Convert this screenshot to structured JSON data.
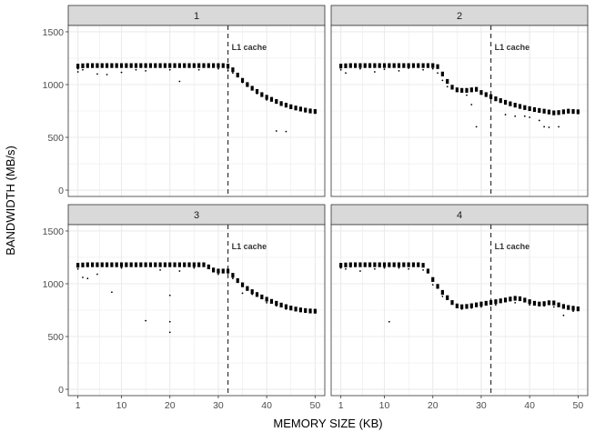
{
  "chart_data": {
    "type": "scatter",
    "xlabel": "MEMORY SIZE (KB)",
    "ylabel": "BANDWIDTH (MB/s)",
    "xlim": [
      -1,
      52
    ],
    "ylim": [
      -60,
      1560
    ],
    "x_ticks": [
      1,
      10,
      20,
      30,
      40,
      50
    ],
    "y_ticks": [
      0,
      500,
      1000,
      1500
    ],
    "grid": true,
    "colors": {
      "point": "#000000",
      "panel_bg": "#ffffff",
      "grid": "#ebebeb",
      "strip_bg": "#d9d9d9",
      "border": "#333333",
      "vline": "#333333"
    },
    "annotation": {
      "label": "L1 cache",
      "x": 32,
      "style": "dashed"
    },
    "panels": [
      {
        "strip": "1",
        "main_series": [
          [
            1,
            1175
          ],
          [
            2,
            1178
          ],
          [
            3,
            1180
          ],
          [
            4,
            1180
          ],
          [
            5,
            1180
          ],
          [
            6,
            1180
          ],
          [
            7,
            1180
          ],
          [
            8,
            1180
          ],
          [
            9,
            1180
          ],
          [
            10,
            1180
          ],
          [
            11,
            1180
          ],
          [
            12,
            1180
          ],
          [
            13,
            1180
          ],
          [
            14,
            1180
          ],
          [
            15,
            1180
          ],
          [
            16,
            1180
          ],
          [
            17,
            1180
          ],
          [
            18,
            1180
          ],
          [
            19,
            1180
          ],
          [
            20,
            1180
          ],
          [
            21,
            1180
          ],
          [
            22,
            1180
          ],
          [
            23,
            1180
          ],
          [
            24,
            1180
          ],
          [
            25,
            1180
          ],
          [
            26,
            1180
          ],
          [
            27,
            1180
          ],
          [
            28,
            1180
          ],
          [
            29,
            1180
          ],
          [
            30,
            1180
          ],
          [
            31,
            1180
          ],
          [
            32,
            1175
          ],
          [
            33,
            1140
          ],
          [
            34,
            1090
          ],
          [
            35,
            1040
          ],
          [
            36,
            1000
          ],
          [
            37,
            965
          ],
          [
            38,
            935
          ],
          [
            39,
            905
          ],
          [
            40,
            880
          ],
          [
            41,
            860
          ],
          [
            42,
            840
          ],
          [
            43,
            820
          ],
          [
            44,
            805
          ],
          [
            45,
            790
          ],
          [
            46,
            778
          ],
          [
            47,
            768
          ],
          [
            48,
            758
          ],
          [
            49,
            750
          ],
          [
            50,
            745
          ]
        ],
        "outliers": [
          [
            1,
            1150
          ],
          [
            1,
            1120
          ],
          [
            2,
            1140
          ],
          [
            5,
            1100
          ],
          [
            7,
            1095
          ],
          [
            10,
            1115
          ],
          [
            13,
            1140
          ],
          [
            15,
            1130
          ],
          [
            20,
            1140
          ],
          [
            22,
            1030
          ],
          [
            26,
            1140
          ],
          [
            30,
            1150
          ],
          [
            32,
            1130
          ],
          [
            33,
            1110
          ],
          [
            35,
            1020
          ],
          [
            38,
            915
          ],
          [
            40,
            855
          ],
          [
            42,
            560
          ],
          [
            44,
            555
          ]
        ]
      },
      {
        "strip": "2",
        "main_series": [
          [
            1,
            1175
          ],
          [
            2,
            1178
          ],
          [
            3,
            1180
          ],
          [
            4,
            1180
          ],
          [
            5,
            1180
          ],
          [
            6,
            1180
          ],
          [
            7,
            1180
          ],
          [
            8,
            1180
          ],
          [
            9,
            1180
          ],
          [
            10,
            1180
          ],
          [
            11,
            1180
          ],
          [
            12,
            1180
          ],
          [
            13,
            1180
          ],
          [
            14,
            1180
          ],
          [
            15,
            1180
          ],
          [
            16,
            1180
          ],
          [
            17,
            1180
          ],
          [
            18,
            1180
          ],
          [
            19,
            1180
          ],
          [
            20,
            1180
          ],
          [
            21,
            1170
          ],
          [
            22,
            1100
          ],
          [
            23,
            1030
          ],
          [
            24,
            975
          ],
          [
            25,
            950
          ],
          [
            26,
            945
          ],
          [
            27,
            945
          ],
          [
            28,
            950
          ],
          [
            29,
            955
          ],
          [
            30,
            925
          ],
          [
            31,
            905
          ],
          [
            32,
            885
          ],
          [
            33,
            865
          ],
          [
            34,
            848
          ],
          [
            35,
            832
          ],
          [
            36,
            818
          ],
          [
            37,
            805
          ],
          [
            38,
            793
          ],
          [
            39,
            782
          ],
          [
            40,
            772
          ],
          [
            41,
            763
          ],
          [
            42,
            755
          ],
          [
            43,
            748
          ],
          [
            44,
            740
          ],
          [
            45,
            732
          ],
          [
            46,
            735
          ],
          [
            47,
            742
          ],
          [
            48,
            748
          ],
          [
            49,
            745
          ],
          [
            50,
            742
          ]
        ],
        "outliers": [
          [
            1,
            1140
          ],
          [
            2,
            1110
          ],
          [
            5,
            1150
          ],
          [
            8,
            1120
          ],
          [
            10,
            1145
          ],
          [
            13,
            1130
          ],
          [
            15,
            1155
          ],
          [
            18,
            1140
          ],
          [
            20,
            1150
          ],
          [
            21,
            1110
          ],
          [
            22,
            1040
          ],
          [
            23,
            980
          ],
          [
            27,
            900
          ],
          [
            28,
            810
          ],
          [
            29,
            600
          ],
          [
            35,
            715
          ],
          [
            37,
            700
          ],
          [
            39,
            700
          ],
          [
            40,
            690
          ],
          [
            42,
            660
          ],
          [
            43,
            600
          ],
          [
            44,
            595
          ],
          [
            46,
            600
          ]
        ]
      },
      {
        "strip": "3",
        "main_series": [
          [
            1,
            1175
          ],
          [
            2,
            1178
          ],
          [
            3,
            1180
          ],
          [
            4,
            1180
          ],
          [
            5,
            1180
          ],
          [
            6,
            1180
          ],
          [
            7,
            1180
          ],
          [
            8,
            1180
          ],
          [
            9,
            1180
          ],
          [
            10,
            1180
          ],
          [
            11,
            1180
          ],
          [
            12,
            1180
          ],
          [
            13,
            1180
          ],
          [
            14,
            1180
          ],
          [
            15,
            1180
          ],
          [
            16,
            1180
          ],
          [
            17,
            1180
          ],
          [
            18,
            1180
          ],
          [
            19,
            1180
          ],
          [
            20,
            1180
          ],
          [
            21,
            1180
          ],
          [
            22,
            1180
          ],
          [
            23,
            1180
          ],
          [
            24,
            1180
          ],
          [
            25,
            1180
          ],
          [
            26,
            1180
          ],
          [
            27,
            1180
          ],
          [
            28,
            1160
          ],
          [
            29,
            1130
          ],
          [
            30,
            1120
          ],
          [
            31,
            1120
          ],
          [
            32,
            1120
          ],
          [
            33,
            1080
          ],
          [
            34,
            1030
          ],
          [
            35,
            990
          ],
          [
            36,
            955
          ],
          [
            37,
            925
          ],
          [
            38,
            898
          ],
          [
            39,
            875
          ],
          [
            40,
            853
          ],
          [
            41,
            833
          ],
          [
            42,
            815
          ],
          [
            43,
            798
          ],
          [
            44,
            783
          ],
          [
            45,
            770
          ],
          [
            46,
            760
          ],
          [
            47,
            752
          ],
          [
            48,
            746
          ],
          [
            49,
            742
          ],
          [
            50,
            740
          ]
        ],
        "outliers": [
          [
            1,
            1140
          ],
          [
            2,
            1060
          ],
          [
            3,
            1050
          ],
          [
            5,
            1090
          ],
          [
            8,
            920
          ],
          [
            10,
            1150
          ],
          [
            15,
            650
          ],
          [
            18,
            1130
          ],
          [
            20,
            890
          ],
          [
            20,
            640
          ],
          [
            20,
            540
          ],
          [
            22,
            1120
          ],
          [
            25,
            1150
          ],
          [
            30,
            1090
          ],
          [
            33,
            1050
          ],
          [
            35,
            910
          ],
          [
            37,
            900
          ],
          [
            40,
            820
          ],
          [
            42,
            790
          ],
          [
            44,
            760
          ]
        ]
      },
      {
        "strip": "4",
        "main_series": [
          [
            1,
            1175
          ],
          [
            2,
            1178
          ],
          [
            3,
            1180
          ],
          [
            4,
            1180
          ],
          [
            5,
            1180
          ],
          [
            6,
            1180
          ],
          [
            7,
            1180
          ],
          [
            8,
            1180
          ],
          [
            9,
            1180
          ],
          [
            10,
            1180
          ],
          [
            11,
            1180
          ],
          [
            12,
            1180
          ],
          [
            13,
            1180
          ],
          [
            14,
            1180
          ],
          [
            15,
            1180
          ],
          [
            16,
            1180
          ],
          [
            17,
            1180
          ],
          [
            18,
            1175
          ],
          [
            19,
            1120
          ],
          [
            20,
            1040
          ],
          [
            21,
            975
          ],
          [
            22,
            918
          ],
          [
            23,
            868
          ],
          [
            24,
            822
          ],
          [
            25,
            790
          ],
          [
            26,
            782
          ],
          [
            27,
            785
          ],
          [
            28,
            792
          ],
          [
            29,
            800
          ],
          [
            30,
            808
          ],
          [
            31,
            815
          ],
          [
            32,
            822
          ],
          [
            33,
            830
          ],
          [
            34,
            838
          ],
          [
            35,
            846
          ],
          [
            36,
            855
          ],
          [
            37,
            862
          ],
          [
            38,
            858
          ],
          [
            39,
            845
          ],
          [
            40,
            830
          ],
          [
            41,
            815
          ],
          [
            42,
            808
          ],
          [
            43,
            812
          ],
          [
            44,
            820
          ],
          [
            45,
            818
          ],
          [
            46,
            800
          ],
          [
            47,
            785
          ],
          [
            48,
            775
          ],
          [
            49,
            768
          ],
          [
            50,
            762
          ]
        ],
        "outliers": [
          [
            1,
            1150
          ],
          [
            2,
            1140
          ],
          [
            3,
            1160
          ],
          [
            5,
            1120
          ],
          [
            8,
            1140
          ],
          [
            10,
            1150
          ],
          [
            11,
            640
          ],
          [
            13,
            1150
          ],
          [
            15,
            1140
          ],
          [
            18,
            1130
          ],
          [
            20,
            990
          ],
          [
            22,
            880
          ],
          [
            26,
            760
          ],
          [
            28,
            770
          ],
          [
            30,
            780
          ],
          [
            33,
            800
          ],
          [
            37,
            820
          ],
          [
            40,
            800
          ],
          [
            43,
            790
          ],
          [
            45,
            780
          ],
          [
            47,
            700
          ],
          [
            49,
            740
          ]
        ]
      }
    ]
  }
}
